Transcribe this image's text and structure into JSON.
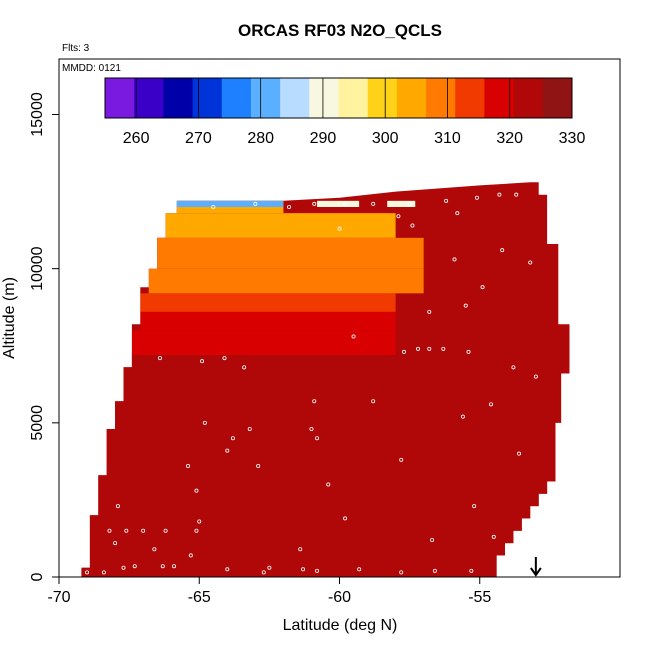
{
  "chart_data": {
    "type": "heatmap",
    "title": "ORCAS RF03 N2O_QCLS",
    "flights_note": "Flts: 3",
    "date_note": "MMDD: 0121",
    "xlabel": "Latitude (deg N)",
    "ylabel": "Altitude (m)",
    "xlim": [
      -70,
      -50
    ],
    "ylim": [
      0,
      16800
    ],
    "x_ticks": [
      -70,
      -65,
      -60,
      -55
    ],
    "x_tick_labels": [
      "-70",
      "-65",
      "-60",
      "-55"
    ],
    "y_ticks": [
      0,
      5000,
      10000,
      15000
    ],
    "y_tick_labels": [
      "0",
      "5000",
      "10000",
      "15000"
    ],
    "colorbar": {
      "range": [
        255,
        330
      ],
      "ticks": [
        260,
        270,
        280,
        290,
        300,
        310,
        320,
        330
      ],
      "tick_labels": [
        "260",
        "270",
        "280",
        "290",
        "300",
        "310",
        "320",
        "330"
      ],
      "colors": [
        "#7a1ae0",
        "#3a00c8",
        "#0000a8",
        "#0033d8",
        "#1e80ff",
        "#5ab0ff",
        "#b8dcff",
        "#f8f8e0",
        "#fff3a0",
        "#ffd21a",
        "#ffa800",
        "#ff7a00",
        "#f03a00",
        "#d80000",
        "#b00808",
        "#901414"
      ]
    },
    "marker": {
      "latitude": -53,
      "label": "arrow"
    },
    "coverage_envelope": [
      [
        -69.2,
        0
      ],
      [
        -69.2,
        300
      ],
      [
        -68.9,
        300
      ],
      [
        -68.9,
        2000
      ],
      [
        -68.6,
        2000
      ],
      [
        -68.6,
        3300
      ],
      [
        -68.3,
        3300
      ],
      [
        -68.3,
        4800
      ],
      [
        -68.0,
        4800
      ],
      [
        -68.0,
        5700
      ],
      [
        -67.7,
        5700
      ],
      [
        -67.7,
        6800
      ],
      [
        -67.4,
        6800
      ],
      [
        -67.4,
        8200
      ],
      [
        -67.1,
        8200
      ],
      [
        -67.1,
        9400
      ],
      [
        -66.8,
        9400
      ],
      [
        -66.8,
        10000
      ],
      [
        -66.5,
        10000
      ],
      [
        -66.5,
        11000
      ],
      [
        -66.2,
        11000
      ],
      [
        -66.2,
        11800
      ],
      [
        -65.8,
        11800
      ],
      [
        -65.8,
        12200
      ],
      [
        -62.0,
        12200
      ],
      [
        -60.0,
        12300
      ],
      [
        -58.0,
        12500
      ],
      [
        -55.0,
        12700
      ],
      [
        -53.2,
        12800
      ],
      [
        -52.9,
        12800
      ],
      [
        -52.9,
        12400
      ],
      [
        -52.6,
        12400
      ],
      [
        -52.6,
        10800
      ],
      [
        -52.2,
        10800
      ],
      [
        -52.2,
        8200
      ],
      [
        -51.8,
        8200
      ],
      [
        -51.8,
        6600
      ],
      [
        -52.1,
        6600
      ],
      [
        -52.1,
        5000
      ],
      [
        -52.3,
        5000
      ],
      [
        -52.3,
        3100
      ],
      [
        -52.6,
        3100
      ],
      [
        -52.6,
        2700
      ],
      [
        -52.9,
        2700
      ],
      [
        -52.9,
        2300
      ],
      [
        -53.2,
        2300
      ],
      [
        -53.2,
        1900
      ],
      [
        -53.5,
        1900
      ],
      [
        -53.5,
        1500
      ],
      [
        -53.8,
        1500
      ],
      [
        -53.8,
        1100
      ],
      [
        -54.1,
        1100
      ],
      [
        -54.1,
        700
      ],
      [
        -54.4,
        700
      ],
      [
        -54.4,
        0
      ]
    ],
    "fill_value_background": 322,
    "layers": [
      {
        "y_range": [
          0,
          7200
        ],
        "x_range": [
          -69.2,
          -51.8
        ],
        "value": 323
      },
      {
        "y_range": [
          7200,
          8000
        ],
        "x_range": [
          -67.4,
          -58
        ],
        "value": 320
      },
      {
        "y_range": [
          8000,
          8600
        ],
        "x_range": [
          -67.1,
          -58
        ],
        "value": 317
      },
      {
        "y_range": [
          8600,
          9200
        ],
        "x_range": [
          -67.1,
          -58
        ],
        "value": 313
      },
      {
        "y_range": [
          9200,
          10000
        ],
        "x_range": [
          -66.8,
          -57
        ],
        "value": 310
      },
      {
        "y_range": [
          10000,
          11000
        ],
        "x_range": [
          -66.5,
          -57
        ],
        "value": 307
      },
      {
        "y_range": [
          11000,
          11800
        ],
        "x_range": [
          -66.2,
          -58
        ],
        "value": 305
      },
      {
        "y_range": [
          11800,
          12200
        ],
        "x_range": [
          -65.8,
          -62
        ],
        "value": 302
      },
      {
        "y_range": [
          12000,
          12200
        ],
        "x_range": [
          -65.9,
          -62
        ],
        "value": 282
      },
      {
        "y_range": [
          12000,
          12200
        ],
        "x_range": [
          -60.8,
          -59.3
        ],
        "value": 288
      },
      {
        "y_range": [
          12000,
          12200
        ],
        "x_range": [
          -58.3,
          -57.3
        ],
        "value": 292
      }
    ],
    "samples": [
      [
        -69.0,
        150
      ],
      [
        -68.4,
        150
      ],
      [
        -67.7,
        300
      ],
      [
        -67.3,
        350
      ],
      [
        -66.3,
        350
      ],
      [
        -65.9,
        350
      ],
      [
        -64.0,
        250
      ],
      [
        -62.7,
        150
      ],
      [
        -62.5,
        300
      ],
      [
        -61.3,
        250
      ],
      [
        -60.8,
        200
      ],
      [
        -59.3,
        250
      ],
      [
        -57.8,
        150
      ],
      [
        -56.6,
        200
      ],
      [
        -55.3,
        200
      ],
      [
        -54.2,
        250
      ],
      [
        -68.2,
        1500
      ],
      [
        -67.6,
        1500
      ],
      [
        -67.0,
        1500
      ],
      [
        -66.2,
        1500
      ],
      [
        -65.1,
        1500
      ],
      [
        -68.0,
        1100
      ],
      [
        -66.6,
        900
      ],
      [
        -65.3,
        700
      ],
      [
        -61.4,
        900
      ],
      [
        -56.7,
        1200
      ],
      [
        -54.5,
        1300
      ],
      [
        -67.9,
        2300
      ],
      [
        -65.0,
        1800
      ],
      [
        -59.8,
        1900
      ],
      [
        -55.2,
        2300
      ],
      [
        -65.1,
        2800
      ],
      [
        -62.9,
        3600
      ],
      [
        -60.4,
        3000
      ],
      [
        -57.8,
        3800
      ],
      [
        -53.6,
        4000
      ],
      [
        -65.4,
        3600
      ],
      [
        -64.0,
        4100
      ],
      [
        -64.8,
        5000
      ],
      [
        -63.8,
        4500
      ],
      [
        -63.2,
        4800
      ],
      [
        -61.0,
        4800
      ],
      [
        -60.9,
        5700
      ],
      [
        -60.8,
        4500
      ],
      [
        -58.8,
        5700
      ],
      [
        -55.6,
        5200
      ],
      [
        -54.6,
        5600
      ],
      [
        -66.4,
        7100
      ],
      [
        -64.9,
        7000
      ],
      [
        -64.1,
        7100
      ],
      [
        -63.4,
        6800
      ],
      [
        -59.5,
        7800
      ],
      [
        -57.7,
        7300
      ],
      [
        -57.2,
        7400
      ],
      [
        -56.8,
        7400
      ],
      [
        -56.3,
        7400
      ],
      [
        -55.4,
        7300
      ],
      [
        -53.8,
        6800
      ],
      [
        -53.0,
        6500
      ],
      [
        -56.8,
        8600
      ],
      [
        -55.5,
        8800
      ],
      [
        -54.9,
        9400
      ],
      [
        -55.9,
        10300
      ],
      [
        -54.2,
        10600
      ],
      [
        -53.2,
        10200
      ],
      [
        -52.5,
        11400
      ],
      [
        -52.0,
        10800
      ],
      [
        -60.0,
        11300
      ],
      [
        -57.9,
        11700
      ],
      [
        -57.4,
        11400
      ],
      [
        -55.8,
        11800
      ],
      [
        -64.5,
        12000
      ],
      [
        -63.0,
        12100
      ],
      [
        -61.8,
        12000
      ],
      [
        -60.9,
        12100
      ],
      [
        -59.8,
        12100
      ],
      [
        -58.8,
        12100
      ],
      [
        -57.5,
        12100
      ],
      [
        -56.2,
        12200
      ],
      [
        -55.1,
        12300
      ],
      [
        -54.3,
        12400
      ],
      [
        -53.7,
        12400
      ]
    ]
  }
}
